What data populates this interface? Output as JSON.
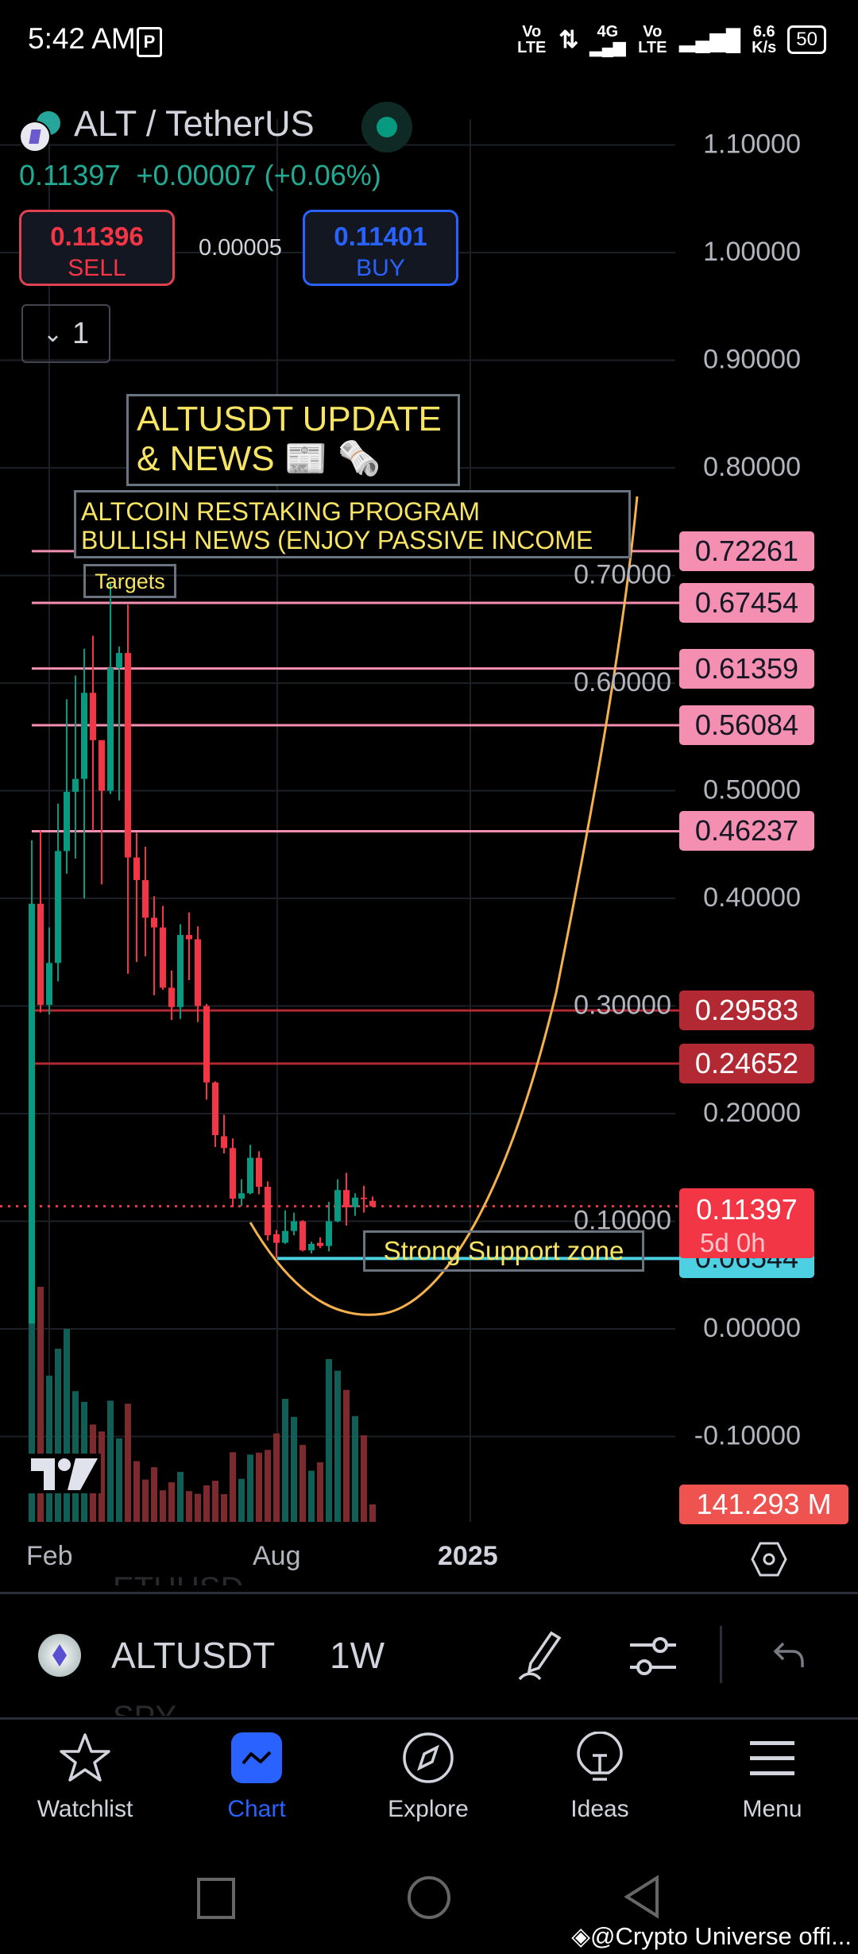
{
  "status_bar": {
    "time": "5:42 AM",
    "net1": "Vo LTE",
    "net_type": "4G",
    "net2": "Vo LTE",
    "speed": "6.6",
    "speed_unit": "K/s",
    "battery": "50"
  },
  "header": {
    "symbol_title": "ALT / TetherUS",
    "market_status_color": "#089981",
    "last_price": "0.11397",
    "change": "+0.00007",
    "change_pct": "(+0.06%)",
    "sell_price": "0.11396",
    "sell_label": "SELL",
    "spread": "0.00005",
    "buy_price": "0.11401",
    "buy_label": "BUY",
    "indicators_count": "1"
  },
  "annotations": {
    "title_line1": "ALTUSDT UPDATE",
    "title_line2": "& NEWS 📰 🗞️",
    "news_line1": "ALTCOIN RESTAKING PROGRAM",
    "news_line2": "BULLISH NEWS (ENJOY PASSIVE INCOME",
    "targets": "Targets",
    "support": "Strong Support zone"
  },
  "price_axis": [
    "1.10000",
    "1.00000",
    "0.90000",
    "0.80000",
    "0.70000",
    "0.60000",
    "0.50000",
    "0.40000",
    "0.30000",
    "0.20000",
    "0.10000",
    "0.00000",
    "-0.10000"
  ],
  "levels": [
    {
      "value": 0.72261,
      "label": "0.72261",
      "kind": "target",
      "color": "#f48fb1"
    },
    {
      "value": 0.67454,
      "label": "0.67454",
      "kind": "target",
      "color": "#f48fb1"
    },
    {
      "value": 0.61359,
      "label": "0.61359",
      "kind": "target",
      "color": "#f48fb1"
    },
    {
      "value": 0.56084,
      "label": "0.56084",
      "kind": "target",
      "color": "#f48fb1"
    },
    {
      "value": 0.46237,
      "label": "0.46237",
      "kind": "target",
      "color": "#f48fb1"
    },
    {
      "value": 0.29583,
      "label": "0.29583",
      "kind": "resistance",
      "color": "#b22833"
    },
    {
      "value": 0.24652,
      "label": "0.24652",
      "kind": "resistance",
      "color": "#b22833"
    },
    {
      "value": 0.06544,
      "label": "0.06544",
      "kind": "support",
      "color": "#4dd0e1"
    }
  ],
  "current_price": {
    "value": 0.11397,
    "label": "0.11397",
    "countdown": "5d 0h",
    "color": "#f23645"
  },
  "volume_label": "141.293 M",
  "time_axis": [
    "Feb",
    "Aug",
    "2025"
  ],
  "chart_data": {
    "type": "candlestick",
    "interval": "1W",
    "ylim": [
      -0.1,
      1.1
    ],
    "up_color": "#089981",
    "down_color": "#f23645",
    "candles": [
      [
        0.005,
        0.454,
        0.005,
        0.395
      ],
      [
        0.395,
        0.463,
        0.294,
        0.301
      ],
      [
        0.301,
        0.373,
        0.292,
        0.34
      ],
      [
        0.34,
        0.488,
        0.323,
        0.444
      ],
      [
        0.444,
        0.585,
        0.423,
        0.499
      ],
      [
        0.499,
        0.607,
        0.437,
        0.511
      ],
      [
        0.511,
        0.632,
        0.4,
        0.591
      ],
      [
        0.591,
        0.644,
        0.463,
        0.547
      ],
      [
        0.547,
        0.547,
        0.413,
        0.5
      ],
      [
        0.5,
        0.694,
        0.497,
        0.614
      ],
      [
        0.614,
        0.634,
        0.491,
        0.628
      ],
      [
        0.628,
        0.673,
        0.33,
        0.438
      ],
      [
        0.438,
        0.461,
        0.341,
        0.417
      ],
      [
        0.417,
        0.448,
        0.346,
        0.382
      ],
      [
        0.382,
        0.402,
        0.31,
        0.373
      ],
      [
        0.373,
        0.393,
        0.315,
        0.317
      ],
      [
        0.317,
        0.333,
        0.287,
        0.299
      ],
      [
        0.299,
        0.376,
        0.288,
        0.366
      ],
      [
        0.366,
        0.387,
        0.324,
        0.362
      ],
      [
        0.362,
        0.374,
        0.285,
        0.3
      ],
      [
        0.3,
        0.302,
        0.213,
        0.229
      ],
      [
        0.229,
        0.23,
        0.169,
        0.18
      ],
      [
        0.179,
        0.199,
        0.163,
        0.168
      ],
      [
        0.168,
        0.177,
        0.113,
        0.121
      ],
      [
        0.121,
        0.139,
        0.114,
        0.126
      ],
      [
        0.126,
        0.171,
        0.125,
        0.159
      ],
      [
        0.159,
        0.165,
        0.125,
        0.132
      ],
      [
        0.132,
        0.137,
        0.082,
        0.087
      ],
      [
        0.088,
        0.092,
        0.066,
        0.08
      ],
      [
        0.08,
        0.11,
        0.079,
        0.091
      ],
      [
        0.091,
        0.108,
        0.087,
        0.1
      ],
      [
        0.1,
        0.101,
        0.072,
        0.073
      ],
      [
        0.073,
        0.081,
        0.07,
        0.079
      ],
      [
        0.08,
        0.085,
        0.075,
        0.077
      ],
      [
        0.077,
        0.118,
        0.072,
        0.1
      ],
      [
        0.1,
        0.139,
        0.099,
        0.129
      ],
      [
        0.129,
        0.145,
        0.096,
        0.113
      ],
      [
        0.113,
        0.126,
        0.105,
        0.122
      ],
      [
        0.122,
        0.133,
        0.108,
        0.121
      ],
      [
        0.119,
        0.123,
        0.113,
        0.11397
      ]
    ],
    "volume_millions": [
      1800,
      1900,
      1182,
      1400,
      1560,
      1057,
      970,
      787,
      731,
      980,
      675,
      955,
      491,
      342,
      442,
      255,
      320,
      404,
      249,
      227,
      295,
      333,
      224,
      563,
      348,
      544,
      560,
      582,
      715,
      995,
      849,
      622,
      414,
      482,
      1316,
      1222,
      1067,
      855,
      700,
      141.293
    ]
  },
  "bottom_toolbar": {
    "symbol": "ALTUSDT",
    "interval": "1W",
    "ghost_symbols": [
      "ETHUSD",
      "SPY"
    ]
  },
  "nav": [
    {
      "label": "Watchlist",
      "icon": "star"
    },
    {
      "label": "Chart",
      "icon": "chart",
      "active": true
    },
    {
      "label": "Explore",
      "icon": "compass"
    },
    {
      "label": "Ideas",
      "icon": "lightbulb"
    },
    {
      "label": "Menu",
      "icon": "hamburger"
    }
  ],
  "colors": {
    "accent": "#2962ff",
    "curve": "#f5b14c"
  },
  "watermark": "@Crypto Universe offi..."
}
